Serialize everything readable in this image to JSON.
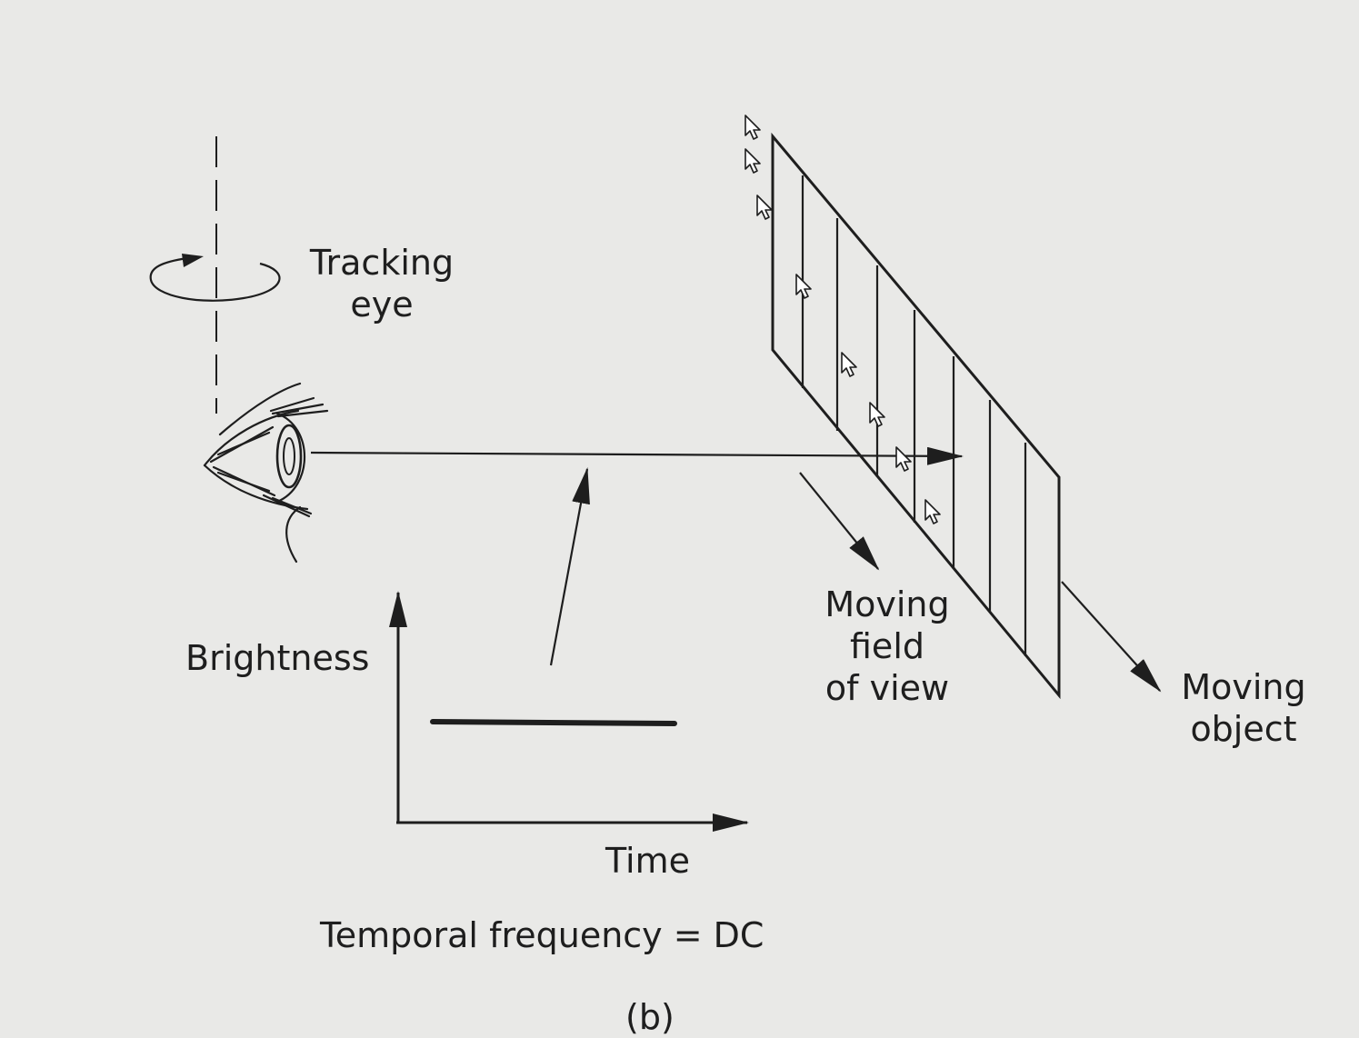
{
  "labels": {
    "tracking_eye": [
      "Tracking",
      "eye"
    ],
    "brightness": "Brightness",
    "time": "Time",
    "moving_field_of_view": [
      "Moving",
      "field",
      "of view"
    ],
    "moving_object": [
      "Moving",
      "object"
    ],
    "temporal_frequency": "Temporal frequency = DC",
    "figure_label": "(b)"
  },
  "icons": {
    "eye": "eye-icon",
    "rotation": "rotation-arrow-icon",
    "cursor": "mouse-cursor-icon"
  },
  "colors": {
    "ink": "#1e1e1e",
    "background": "#e9e9e7"
  }
}
